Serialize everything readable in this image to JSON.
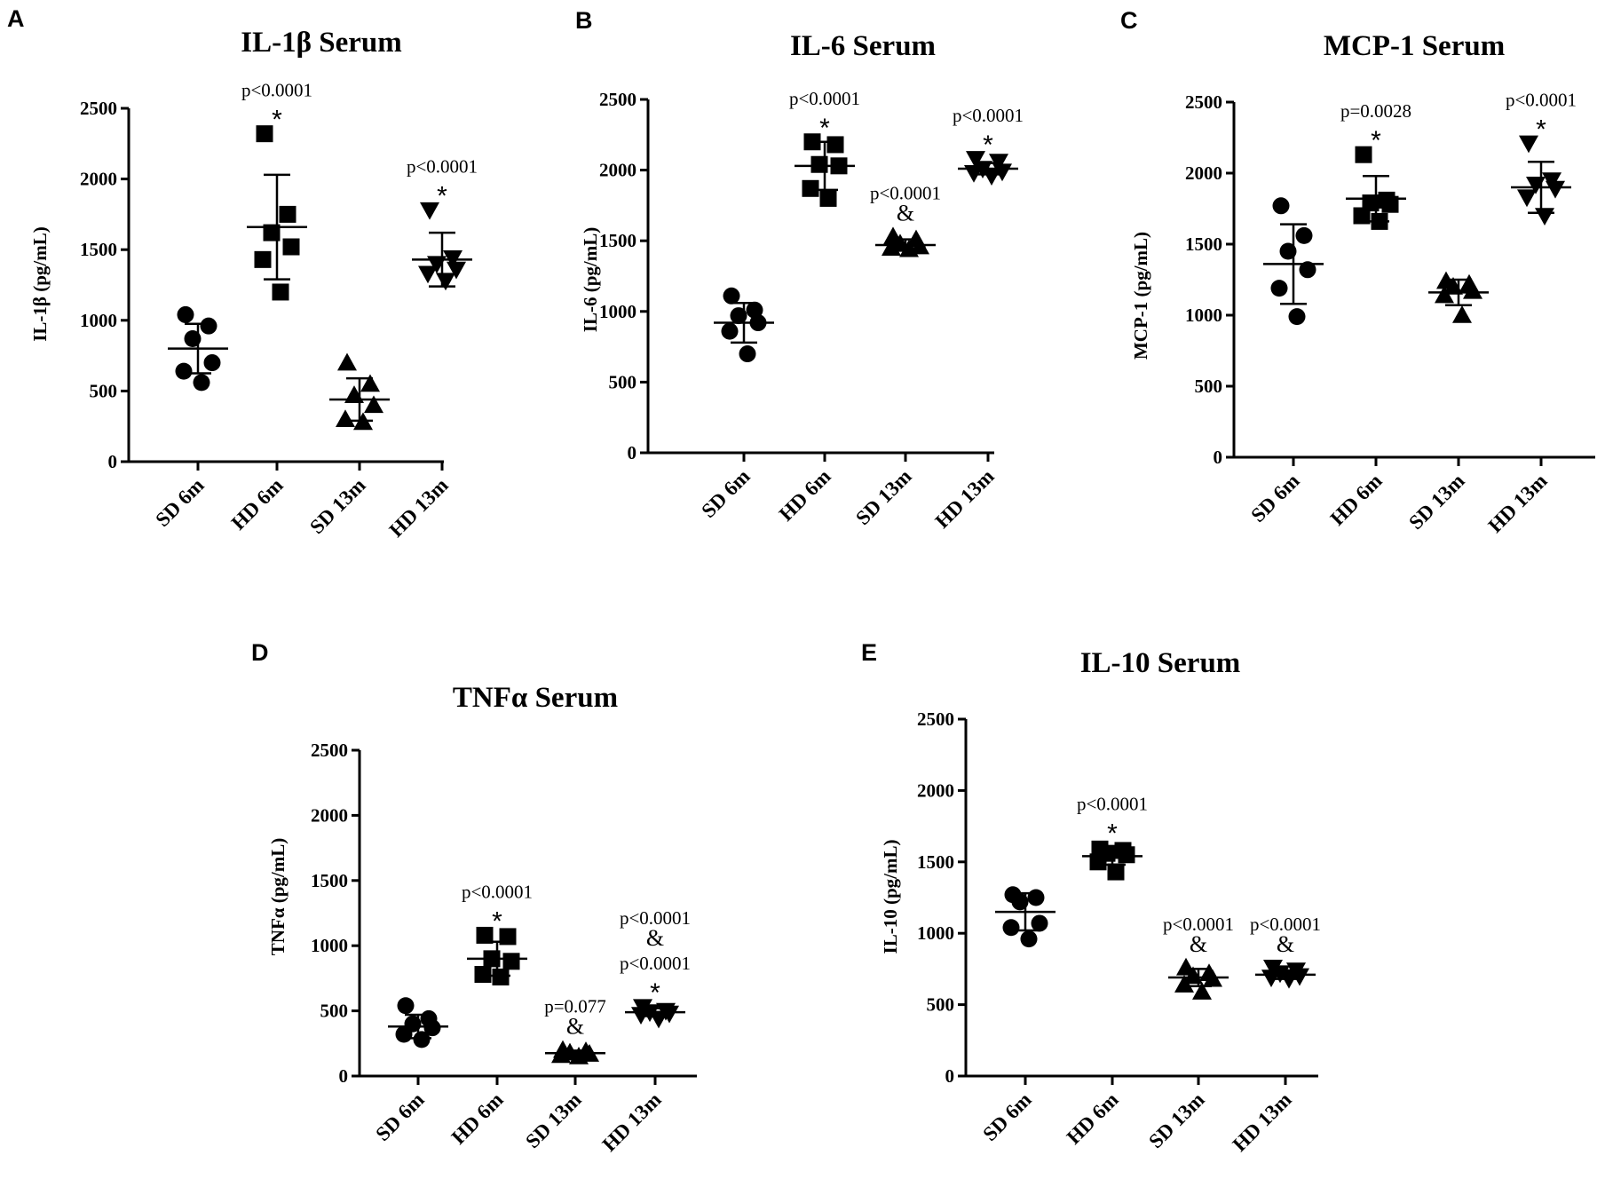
{
  "chart_data": [
    {
      "panel": "A",
      "type": "scatter",
      "title": "IL-1β Serum",
      "ylabel": "IL-1β (pg/mL)",
      "ylim": [
        0,
        2500
      ],
      "yticks": [
        0,
        500,
        1000,
        1500,
        2000,
        2500
      ],
      "categories": [
        "SD 6m",
        "HD 6m",
        "SD 13m",
        "HD 13m"
      ],
      "markers": [
        "circle",
        "square",
        "triangle-up",
        "triangle-down"
      ],
      "groups": [
        {
          "points": [
            1040,
            960,
            870,
            700,
            640,
            560
          ],
          "mean": 800,
          "sd": 175,
          "annotations": []
        },
        {
          "points": [
            2320,
            1750,
            1620,
            1520,
            1430,
            1200
          ],
          "mean": 1660,
          "sd": 370,
          "annotations": [
            "p<0.0001",
            "*"
          ]
        },
        {
          "points": [
            700,
            550,
            470,
            400,
            300,
            280
          ],
          "mean": 440,
          "sd": 150,
          "annotations": []
        },
        {
          "points": [
            1780,
            1440,
            1400,
            1360,
            1330,
            1280
          ],
          "mean": 1430,
          "sd": 190,
          "annotations": [
            "p<0.0001",
            "*"
          ]
        }
      ]
    },
    {
      "panel": "B",
      "type": "scatter",
      "title": "IL-6 Serum",
      "ylabel": "IL-6 (pg/mL)",
      "ylim": [
        0,
        2500
      ],
      "yticks": [
        0,
        500,
        1000,
        1500,
        2000,
        2500
      ],
      "categories": [
        "SD 6m",
        "HD 6m",
        "SD 13m",
        "HD 13m"
      ],
      "markers": [
        "circle",
        "square",
        "triangle-up",
        "triangle-down"
      ],
      "groups": [
        {
          "points": [
            1110,
            1010,
            970,
            920,
            860,
            700
          ],
          "mean": 920,
          "sd": 140,
          "annotations": []
        },
        {
          "points": [
            2200,
            2180,
            2040,
            2030,
            1870,
            1800
          ],
          "mean": 2030,
          "sd": 170,
          "annotations": [
            "p<0.0001",
            "*"
          ]
        },
        {
          "points": [
            1530,
            1510,
            1480,
            1460,
            1450,
            1440
          ],
          "mean": 1470,
          "sd": 40,
          "annotations": [
            "p<0.0001",
            "&"
          ]
        },
        {
          "points": [
            2080,
            2060,
            2010,
            1990,
            1980,
            1960
          ],
          "mean": 2010,
          "sd": 40,
          "annotations": [
            "p<0.0001",
            "*"
          ]
        }
      ]
    },
    {
      "panel": "C",
      "type": "scatter",
      "title": "MCP-1 Serum",
      "ylabel": "MCP-1 (pg/mL)",
      "ylim": [
        0,
        2500
      ],
      "yticks": [
        0,
        500,
        1000,
        1500,
        2000,
        2500
      ],
      "categories": [
        "SD 6m",
        "HD 6m",
        "SD 13m",
        "HD 13m"
      ],
      "markers": [
        "circle",
        "square",
        "triangle-up",
        "triangle-down"
      ],
      "groups": [
        {
          "points": [
            1770,
            1560,
            1450,
            1320,
            1190,
            990
          ],
          "mean": 1360,
          "sd": 280,
          "annotations": []
        },
        {
          "points": [
            2130,
            1810,
            1790,
            1780,
            1700,
            1660
          ],
          "mean": 1820,
          "sd": 160,
          "annotations": [
            "p=0.0028",
            "*"
          ]
        },
        {
          "points": [
            1240,
            1220,
            1200,
            1170,
            1140,
            1000
          ],
          "mean": 1160,
          "sd": 90,
          "annotations": []
        },
        {
          "points": [
            2210,
            1950,
            1920,
            1890,
            1830,
            1700
          ],
          "mean": 1900,
          "sd": 180,
          "annotations": [
            "p<0.0001",
            "*"
          ]
        }
      ]
    },
    {
      "panel": "D",
      "type": "scatter",
      "title": "TNFα Serum",
      "ylabel": "TNFα (pg/mL)",
      "ylim": [
        0,
        2500
      ],
      "yticks": [
        0,
        500,
        1000,
        1500,
        2000,
        2500
      ],
      "categories": [
        "SD 6m",
        "HD 6m",
        "SD 13m",
        "HD 13m"
      ],
      "markers": [
        "circle",
        "square",
        "triangle-up",
        "triangle-down"
      ],
      "groups": [
        {
          "points": [
            540,
            440,
            400,
            370,
            320,
            280
          ],
          "mean": 380,
          "sd": 90,
          "annotations": []
        },
        {
          "points": [
            1080,
            1070,
            900,
            880,
            780,
            760
          ],
          "mean": 900,
          "sd": 130,
          "annotations": [
            "p<0.0001",
            "*"
          ]
        },
        {
          "points": [
            200,
            190,
            180,
            170,
            160,
            150
          ],
          "mean": 175,
          "sd": 20,
          "annotations": [
            "p=0.077",
            "&"
          ]
        },
        {
          "points": [
            530,
            500,
            490,
            480,
            470,
            440
          ],
          "mean": 490,
          "sd": 30,
          "annotations": [
            "p<0.0001",
            "&",
            "p<0.0001",
            "*"
          ]
        }
      ]
    },
    {
      "panel": "E",
      "type": "scatter",
      "title": "IL-10 Serum",
      "ylabel": "IL-10 (pg/mL)",
      "ylim": [
        0,
        2500
      ],
      "yticks": [
        0,
        500,
        1000,
        1500,
        2000,
        2500
      ],
      "categories": [
        "SD 6m",
        "HD 6m",
        "SD 13m",
        "HD 13m"
      ],
      "markers": [
        "circle",
        "square",
        "triangle-up",
        "triangle-down"
      ],
      "groups": [
        {
          "points": [
            1270,
            1250,
            1220,
            1070,
            1040,
            960
          ],
          "mean": 1150,
          "sd": 130,
          "annotations": []
        },
        {
          "points": [
            1590,
            1580,
            1560,
            1550,
            1500,
            1430
          ],
          "mean": 1540,
          "sd": 60,
          "annotations": [
            "p<0.0001",
            "*"
          ]
        },
        {
          "points": [
            760,
            720,
            700,
            680,
            640,
            590
          ],
          "mean": 690,
          "sd": 60,
          "annotations": [
            "p<0.0001",
            "&"
          ]
        },
        {
          "points": [
            760,
            740,
            720,
            700,
            690,
            680
          ],
          "mean": 710,
          "sd": 30,
          "annotations": [
            "p<0.0001",
            "&"
          ]
        }
      ]
    }
  ]
}
